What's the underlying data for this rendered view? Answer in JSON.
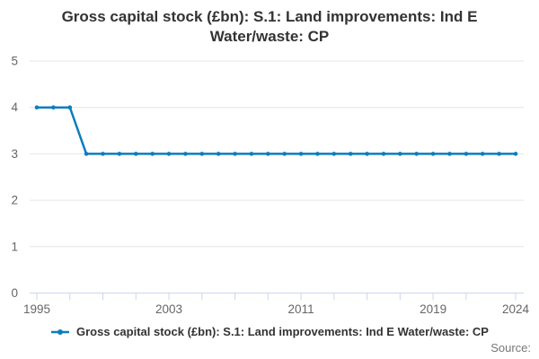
{
  "title_lines": [
    "Gross capital stock (£bn): S.1: Land improvements: Ind E",
    "Water/waste: CP"
  ],
  "source_label": "Source:",
  "legend": {
    "label": "Gross capital stock (£bn): S.1: Land improvements: Ind E Water/waste: CP",
    "marker": "line-with-dot"
  },
  "colors": {
    "series": "#0d7dbe",
    "grid": "#e6e6e6",
    "axis": "#ccd6eb",
    "title_text": "#333333",
    "axis_label": "#666666",
    "source_text": "#777777"
  },
  "chart_data": {
    "type": "line",
    "title": "Gross capital stock (£bn): S.1: Land improvements: Ind E Water/waste: CP",
    "x": [
      1995,
      1996,
      1997,
      1998,
      1999,
      2000,
      2001,
      2002,
      2003,
      2004,
      2005,
      2006,
      2007,
      2008,
      2009,
      2010,
      2011,
      2012,
      2013,
      2014,
      2015,
      2016,
      2017,
      2018,
      2019,
      2020,
      2021,
      2022,
      2023,
      2024
    ],
    "series": [
      {
        "name": "Gross capital stock (£bn): S.1: Land improvements: Ind E Water/waste: CP",
        "values": [
          4,
          4,
          4,
          3,
          3,
          3,
          3,
          3,
          3,
          3,
          3,
          3,
          3,
          3,
          3,
          3,
          3,
          3,
          3,
          3,
          3,
          3,
          3,
          3,
          3,
          3,
          3,
          3,
          3,
          3
        ]
      }
    ],
    "xlabel": "",
    "ylabel": "",
    "ylim": [
      0,
      5
    ],
    "yticks": [
      0,
      1,
      2,
      3,
      4,
      5
    ],
    "xticks_labeled": [
      1995,
      2003,
      2011,
      2019,
      2024
    ],
    "xtick_minor_interval": 2,
    "grid": "horizontal",
    "legend_position": "bottom-center",
    "marker": "dot"
  }
}
